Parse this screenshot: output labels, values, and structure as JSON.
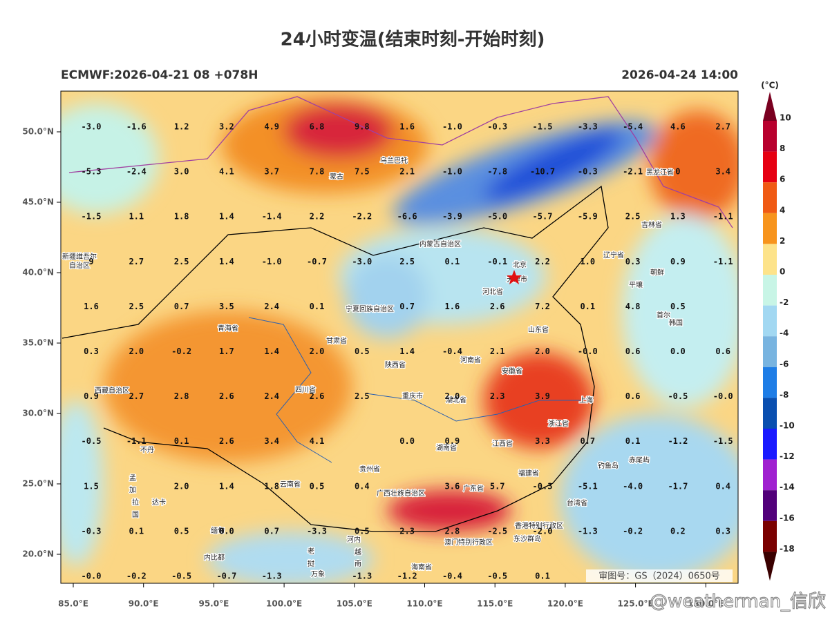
{
  "header": {
    "title": "24小时变温(结束时刻-开始时刻)",
    "left": "ECMWF:2026-04-21 08 +078H",
    "right": "2026-04-24 14:00"
  },
  "lat_labels": [
    "50.0°N",
    "45.0°N",
    "40.0°N",
    "35.0°N",
    "30.0°N",
    "25.0°N",
    "20.0°N"
  ],
  "lon_labels": [
    "85.0°E",
    "90.0°E",
    "95.0°E",
    "100.0°E",
    "105.0°E",
    "110.0°E",
    "115.0°E",
    "120.0°E",
    "125.0°E",
    "130.0°E"
  ],
  "grid_values": [
    [
      "-3.0",
      "-1.6",
      "1.2",
      "3.2",
      "4.9",
      "6.8",
      "9.8",
      "1.6",
      "-1.0",
      "-0.3",
      "-1.5",
      "-3.3",
      "-5.4",
      "4.6",
      "2.7"
    ],
    [
      "-5.3",
      "-2.4",
      "3.0",
      "4.1",
      "3.7",
      "7.8",
      "7.5",
      "2.1",
      "-1.0",
      "-7.8",
      "-10.7",
      "-0.3",
      "-2.1",
      "0",
      "3.4"
    ],
    [
      "-1.5",
      "1.1",
      "1.8",
      "1.4",
      "-1.4",
      "2.2",
      "-2.2",
      "-6.6",
      "-3.9",
      "-5.0",
      "-5.7",
      "-5.9",
      "2.5",
      "1.3",
      "-1.1"
    ],
    [
      "9",
      "2.7",
      "2.5",
      "1.4",
      "-1.0",
      "-0.7",
      "-3.0",
      "2.5",
      "0.1",
      "-0.1",
      "2.2",
      "1.0",
      "0.3",
      "0.9",
      "-1.1"
    ],
    [
      "1.6",
      "2.5",
      "0.7",
      "3.5",
      "2.4",
      "0.1",
      null,
      "0.7",
      "1.6",
      "2.6",
      "7.2",
      "0.1",
      "4.8",
      "0.5",
      null
    ],
    [
      "0.3",
      "2.0",
      "-0.2",
      "1.7",
      "1.4",
      "2.0",
      "0.5",
      "1.4",
      "-0.4",
      "2.1",
      "2.0",
      "-0.0",
      "0.6",
      "0.0",
      "0.6"
    ],
    [
      "0.9",
      "2.7",
      "2.8",
      "2.6",
      "2.4",
      "2.6",
      "2.5",
      null,
      "2.0",
      "2.3",
      "3.9",
      null,
      "0.6",
      "-0.5",
      "-0.0"
    ],
    [
      "-0.5",
      "-1.1",
      "0.1",
      "2.6",
      "3.4",
      "4.1",
      null,
      "0.0",
      "0.9",
      null,
      "3.3",
      "0.7",
      "0.1",
      "-1.2",
      "-1.5"
    ],
    [
      "1.5",
      null,
      "2.0",
      "1.4",
      "1.8",
      "0.5",
      "0.4",
      null,
      "3.6",
      "5.7",
      "-0.3",
      "-5.1",
      "-4.0",
      "-1.7",
      "0.4"
    ],
    [
      "-0.3",
      "0.1",
      "0.5",
      "0.0",
      "0.7",
      "-3.3",
      "0.5",
      "2.3",
      "2.8",
      "-2.5",
      "-2.0",
      "-1.3",
      "-0.2",
      "0.2",
      "0.3"
    ],
    [
      "-0.0",
      "-0.2",
      "-0.5",
      "-0.7",
      "-1.3",
      null,
      "-1.3",
      "-1.2",
      "-0.4",
      "-0.5",
      "0.1",
      null,
      null,
      null,
      null
    ]
  ],
  "places": [
    "蒙古",
    "乌兰巴托",
    "内蒙古自治区",
    "新疆维吾尔",
    "自治区",
    "青海省",
    "甘肃省",
    "宁夏回族自治区",
    "陕西省",
    "河南省",
    "河北省",
    "北京",
    "天津市",
    "山东省",
    "辽宁省",
    "吉林省",
    "黑龙江省",
    "朝鲜",
    "平壤",
    "首尔",
    "韩国",
    "安徽省",
    "上海",
    "浙江省",
    "湖北省",
    "重庆市",
    "四川省",
    "西藏自治区",
    "湖南省",
    "江西省",
    "贵州省",
    "云南省",
    "广西壮族自治区",
    "广东省",
    "福建省",
    "台湾省",
    "香港特别行政区",
    "澳门特别行政区",
    "海南省",
    "东沙群岛",
    "钓鱼岛",
    "赤尾屿",
    "不丹",
    "孟",
    "加",
    "拉",
    "国",
    "达卡",
    "缅甸",
    "老",
    "挝",
    "越",
    "南",
    "河内",
    "内比都",
    "万象"
  ],
  "colorbar": {
    "unit": "(°C)",
    "labels": [
      "10",
      "8",
      "6",
      "4",
      "2",
      "0",
      "-2",
      "-4",
      "-6",
      "-8",
      "-10",
      "-12",
      "-14",
      "-16",
      "-18"
    ],
    "colors": [
      "#7a0020",
      "#b8002e",
      "#e60012",
      "#f05a14",
      "#f7941d",
      "#fde38a",
      "#c8f5e6",
      "#a2d8f2",
      "#78b4e0",
      "#1e7de6",
      "#0a4fb0",
      "#1a1aff",
      "#a020d0",
      "#52007a",
      "#7a0000",
      "#3a0000"
    ]
  },
  "stamp": "审图号：GS（2024）0650号",
  "watermark": "@weatherman_信欣"
}
